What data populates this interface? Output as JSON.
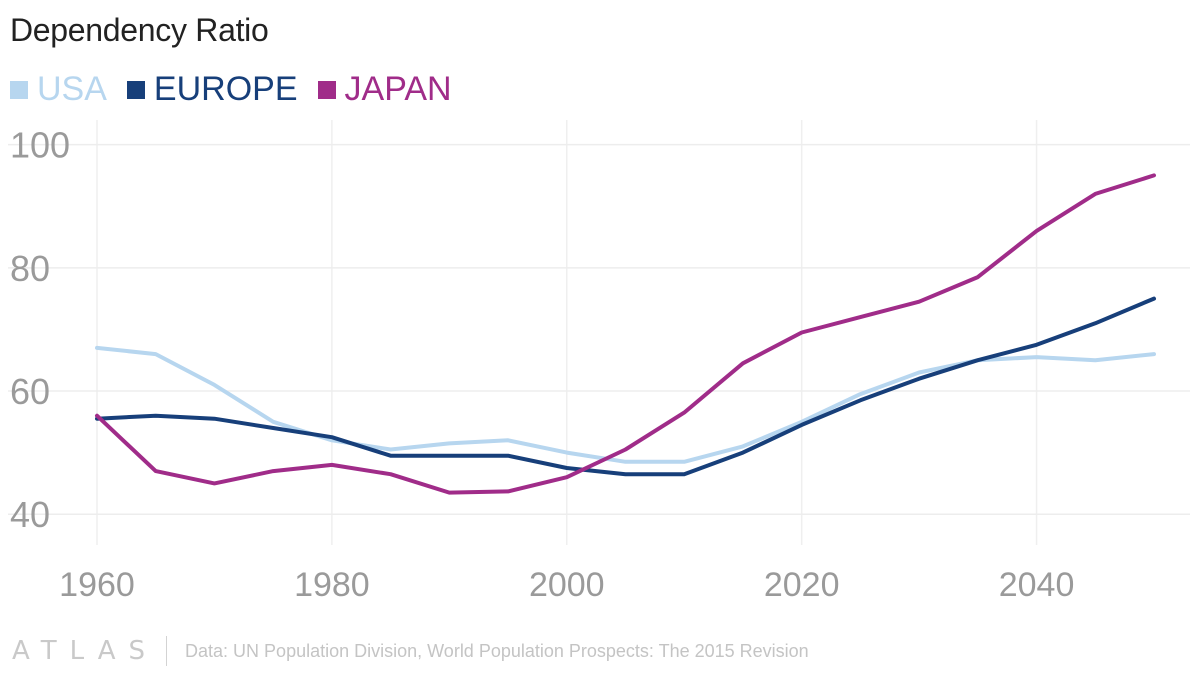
{
  "chart_data": {
    "type": "line",
    "title": "Dependency Ratio",
    "xlabel": "",
    "ylabel": "",
    "xlim": [
      1960,
      2050
    ],
    "ylim": [
      35,
      104
    ],
    "x_ticks": [
      1960,
      1980,
      2000,
      2020,
      2040
    ],
    "y_ticks": [
      40,
      60,
      80,
      100
    ],
    "grid": true,
    "legend_position": "top-left",
    "x": [
      1960,
      1965,
      1970,
      1975,
      1980,
      1985,
      1990,
      1995,
      2000,
      2005,
      2010,
      2015,
      2020,
      2025,
      2030,
      2035,
      2040,
      2045,
      2050
    ],
    "series": [
      {
        "name": "USA",
        "color": "#b7d6ef",
        "values": [
          67,
          66,
          61,
          55,
          52,
          50.5,
          51.5,
          52,
          50,
          48.5,
          48.5,
          51,
          55,
          59.5,
          63,
          65,
          65.5,
          65,
          66
        ]
      },
      {
        "name": "EUROPE",
        "color": "#173f7a",
        "values": [
          55.5,
          56,
          55.5,
          54,
          52.5,
          49.5,
          49.5,
          49.5,
          47.5,
          46.5,
          46.5,
          50,
          54.5,
          58.5,
          62,
          65,
          67.5,
          71,
          75
        ]
      },
      {
        "name": "JAPAN",
        "color": "#a02c89",
        "values": [
          56,
          47,
          45,
          47,
          48,
          46.5,
          43.5,
          43.7,
          46,
          50.5,
          56.5,
          64.5,
          69.5,
          72,
          74.5,
          78.5,
          86,
          92,
          95
        ]
      }
    ]
  },
  "footer": {
    "logo_text": "ATLAS",
    "source": "Data: UN Population Division, World Population Prospects: The 2015 Revision"
  }
}
